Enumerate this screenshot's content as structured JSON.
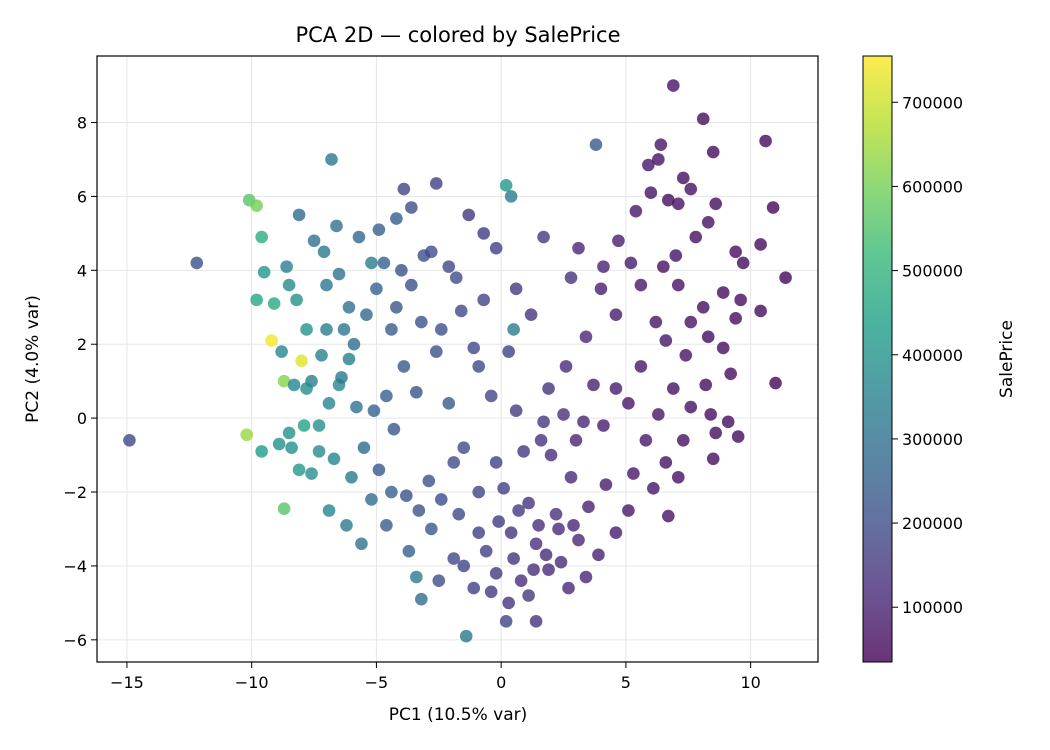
{
  "chart_data": {
    "type": "scatter",
    "title": "PCA 2D — colored by SalePrice",
    "xlabel": "PC1 (10.5% var)",
    "ylabel": "PC2 (4.0% var)",
    "xlim": [
      -16.2,
      12.7
    ],
    "ylim": [
      -6.6,
      9.8
    ],
    "xticks": [
      -15,
      -10,
      -5,
      0,
      5,
      10
    ],
    "yticks": [
      -6,
      -4,
      -2,
      0,
      2,
      4,
      6,
      8
    ],
    "xtick_labels": [
      "−15",
      "−10",
      "−5",
      "0",
      "5",
      "10"
    ],
    "ytick_labels": [
      "−6",
      "−4",
      "−2",
      "0",
      "2",
      "4",
      "6",
      "8"
    ],
    "grid": true,
    "colormap": "viridis",
    "marker_alpha": 0.8,
    "colorbar": {
      "label": "SalePrice",
      "range": [
        34900,
        755000
      ],
      "ticks": [
        100000,
        200000,
        300000,
        400000,
        500000,
        600000,
        700000
      ],
      "tick_labels": [
        "100000",
        "200000",
        "300000",
        "400000",
        "500000",
        "600000",
        "700000"
      ]
    },
    "colors": {
      "viridis": [
        "#440154",
        "#482878",
        "#3e4a89",
        "#31688e",
        "#26828e",
        "#1f9e89",
        "#35b779",
        "#6ece58",
        "#b5de2b",
        "#fde725"
      ]
    },
    "points": [
      [
        -14.9,
        -0.6,
        190000
      ],
      [
        -12.2,
        4.2,
        210000
      ],
      [
        -9.2,
        2.1,
        745000
      ],
      [
        -10.1,
        5.9,
        560000
      ],
      [
        -9.8,
        5.75,
        600000
      ],
      [
        -9.6,
        4.9,
        480000
      ],
      [
        -9.5,
        3.95,
        420000
      ],
      [
        -9.8,
        3.2,
        460000
      ],
      [
        -9.1,
        3.1,
        470000
      ],
      [
        -8.0,
        1.55,
        720000
      ],
      [
        -8.7,
        1.0,
        620000
      ],
      [
        -10.2,
        -0.45,
        640000
      ],
      [
        -8.7,
        -2.45,
        560000
      ],
      [
        -9.6,
        -0.9,
        430000
      ],
      [
        -8.9,
        -0.7,
        400000
      ],
      [
        -8.4,
        -0.8,
        390000
      ],
      [
        -7.9,
        -0.2,
        450000
      ],
      [
        -7.3,
        -0.9,
        380000
      ],
      [
        -6.9,
        -2.5,
        360000
      ],
      [
        -6.2,
        -2.9,
        330000
      ],
      [
        -5.6,
        -3.4,
        300000
      ],
      [
        -6.8,
        7.0,
        320000
      ],
      [
        -8.1,
        5.5,
        280000
      ],
      [
        -7.5,
        4.8,
        300000
      ],
      [
        -8.6,
        4.1,
        350000
      ],
      [
        -8.5,
        3.6,
        380000
      ],
      [
        -8.2,
        3.2,
        400000
      ],
      [
        -7.8,
        2.4,
        410000
      ],
      [
        -8.8,
        1.8,
        370000
      ],
      [
        -8.3,
        0.9,
        360000
      ],
      [
        -7.6,
        1.0,
        340000
      ],
      [
        -6.5,
        0.9,
        370000
      ],
      [
        -6.1,
        1.6,
        350000
      ],
      [
        -6.5,
        3.9,
        300000
      ],
      [
        -5.7,
        4.9,
        270000
      ],
      [
        -5.2,
        4.2,
        340000
      ],
      [
        -4.7,
        4.2,
        260000
      ],
      [
        -3.6,
        5.7,
        200000
      ],
      [
        -3.9,
        6.2,
        180000
      ],
      [
        -2.6,
        6.35,
        170000
      ],
      [
        -1.3,
        5.5,
        150000
      ],
      [
        -0.7,
        5.0,
        160000
      ],
      [
        0.2,
        6.3,
        420000
      ],
      [
        0.4,
        6.0,
        330000
      ],
      [
        -1.8,
        3.8,
        200000
      ],
      [
        -4.2,
        3.0,
        230000
      ],
      [
        -3.2,
        2.6,
        220000
      ],
      [
        -2.4,
        2.4,
        210000
      ],
      [
        -1.1,
        1.9,
        190000
      ],
      [
        0.5,
        2.4,
        340000
      ],
      [
        0.3,
        1.8,
        170000
      ],
      [
        1.2,
        2.8,
        140000
      ],
      [
        -5.1,
        0.2,
        260000
      ],
      [
        -4.3,
        -0.3,
        230000
      ],
      [
        -3.4,
        0.7,
        220000
      ],
      [
        -2.1,
        0.4,
        240000
      ],
      [
        -1.5,
        -0.8,
        200000
      ],
      [
        -0.4,
        0.6,
        180000
      ],
      [
        0.6,
        0.2,
        160000
      ],
      [
        1.7,
        -0.1,
        150000
      ],
      [
        -4.9,
        -1.4,
        230000
      ],
      [
        -3.8,
        -2.1,
        220000
      ],
      [
        -2.9,
        -1.7,
        210000
      ],
      [
        -1.9,
        -1.2,
        200000
      ],
      [
        -0.9,
        -2.0,
        180000
      ],
      [
        0.1,
        -1.9,
        170000
      ],
      [
        1.1,
        -2.3,
        140000
      ],
      [
        2.2,
        -2.6,
        130000
      ],
      [
        -4.6,
        -2.9,
        240000
      ],
      [
        -3.7,
        -3.6,
        260000
      ],
      [
        -2.8,
        -3.0,
        230000
      ],
      [
        -1.9,
        -3.8,
        190000
      ],
      [
        -0.6,
        -3.6,
        170000
      ],
      [
        0.4,
        -3.1,
        140000
      ],
      [
        1.4,
        -3.4,
        130000
      ],
      [
        2.4,
        -3.9,
        120000
      ],
      [
        -3.4,
        -4.3,
        330000
      ],
      [
        -3.2,
        -4.9,
        290000
      ],
      [
        -2.5,
        -4.4,
        200000
      ],
      [
        -1.5,
        -4.0,
        180000
      ],
      [
        -0.4,
        -4.7,
        160000
      ],
      [
        0.3,
        -5.0,
        140000
      ],
      [
        0.8,
        -4.4,
        130000
      ],
      [
        1.9,
        -4.1,
        120000
      ],
      [
        -1.4,
        -5.9,
        320000
      ],
      [
        0.2,
        -5.5,
        180000
      ],
      [
        1.4,
        -5.5,
        140000
      ],
      [
        1.1,
        -4.8,
        150000
      ],
      [
        3.1,
        -3.3,
        110000
      ],
      [
        3.5,
        -2.4,
        100000
      ],
      [
        4.2,
        -1.8,
        90000
      ],
      [
        2.8,
        -1.6,
        120000
      ],
      [
        2.0,
        -1.0,
        130000
      ],
      [
        3.0,
        -0.6,
        110000
      ],
      [
        4.1,
        -0.2,
        90000
      ],
      [
        5.1,
        0.4,
        80000
      ],
      [
        3.7,
        0.9,
        100000
      ],
      [
        2.6,
        1.4,
        120000
      ],
      [
        3.4,
        2.2,
        110000
      ],
      [
        4.6,
        2.8,
        90000
      ],
      [
        5.6,
        3.6,
        80000
      ],
      [
        6.5,
        4.1,
        70000
      ],
      [
        4.1,
        4.1,
        100000
      ],
      [
        3.1,
        4.6,
        110000
      ],
      [
        4.7,
        4.8,
        90000
      ],
      [
        5.4,
        5.6,
        80000
      ],
      [
        6.0,
        6.1,
        70000
      ],
      [
        6.7,
        5.9,
        60000
      ],
      [
        7.3,
        6.5,
        60000
      ],
      [
        6.3,
        7.0,
        70000
      ],
      [
        5.2,
        4.2,
        85000
      ],
      [
        4.0,
        3.5,
        95000
      ],
      [
        3.8,
        7.4,
        230000
      ],
      [
        5.9,
        6.85,
        80000
      ],
      [
        6.4,
        7.4,
        75000
      ],
      [
        6.9,
        9.0,
        70000
      ],
      [
        8.1,
        8.1,
        60000
      ],
      [
        8.5,
        7.2,
        60000
      ],
      [
        7.6,
        6.2,
        65000
      ],
      [
        7.1,
        5.8,
        70000
      ],
      [
        8.6,
        5.8,
        60000
      ],
      [
        8.3,
        5.3,
        65000
      ],
      [
        9.4,
        4.5,
        60000
      ],
      [
        9.7,
        4.2,
        55000
      ],
      [
        10.4,
        4.7,
        55000
      ],
      [
        10.9,
        5.7,
        50000
      ],
      [
        10.6,
        7.5,
        55000
      ],
      [
        11.4,
        3.8,
        50000
      ],
      [
        10.4,
        2.9,
        55000
      ],
      [
        9.6,
        3.2,
        60000
      ],
      [
        9.4,
        2.7,
        60000
      ],
      [
        8.9,
        3.4,
        60000
      ],
      [
        8.1,
        3.0,
        65000
      ],
      [
        7.6,
        2.6,
        70000
      ],
      [
        7.1,
        3.6,
        70000
      ],
      [
        6.6,
        2.1,
        75000
      ],
      [
        7.4,
        1.7,
        70000
      ],
      [
        8.3,
        2.2,
        60000
      ],
      [
        8.9,
        1.9,
        60000
      ],
      [
        9.2,
        1.2,
        60000
      ],
      [
        8.2,
        0.9,
        60000
      ],
      [
        7.6,
        0.3,
        65000
      ],
      [
        6.9,
        0.8,
        70000
      ],
      [
        6.3,
        0.1,
        75000
      ],
      [
        5.8,
        -0.6,
        80000
      ],
      [
        6.6,
        -1.2,
        70000
      ],
      [
        7.3,
        -0.6,
        65000
      ],
      [
        8.4,
        0.1,
        60000
      ],
      [
        8.6,
        -0.4,
        60000
      ],
      [
        9.1,
        -0.1,
        60000
      ],
      [
        9.5,
        -0.5,
        55000
      ],
      [
        11.0,
        0.95,
        50000
      ],
      [
        8.5,
        -1.1,
        60000
      ],
      [
        7.1,
        -1.6,
        65000
      ],
      [
        6.1,
        -1.9,
        75000
      ],
      [
        5.3,
        -1.5,
        80000
      ],
      [
        5.1,
        -2.5,
        80000
      ],
      [
        4.6,
        -3.1,
        90000
      ],
      [
        3.9,
        -3.7,
        100000
      ],
      [
        6.7,
        -2.65,
        70000
      ],
      [
        0.6,
        3.5,
        150000
      ],
      [
        -0.2,
        4.6,
        170000
      ],
      [
        1.7,
        4.9,
        160000
      ],
      [
        2.8,
        3.8,
        140000
      ],
      [
        1.9,
        0.8,
        140000
      ],
      [
        0.9,
        -0.9,
        150000
      ],
      [
        -0.2,
        -1.2,
        170000
      ],
      [
        -0.9,
        1.4,
        190000
      ],
      [
        -2.8,
        4.5,
        200000
      ],
      [
        -3.6,
        3.6,
        210000
      ],
      [
        -4.4,
        2.4,
        240000
      ],
      [
        -5.4,
        2.8,
        270000
      ],
      [
        -5.9,
        2.0,
        290000
      ],
      [
        -6.4,
        1.1,
        320000
      ],
      [
        -6.9,
        0.4,
        360000
      ],
      [
        -7.3,
        -0.2,
        390000
      ],
      [
        -6.7,
        -1.1,
        360000
      ],
      [
        -6.0,
        -1.6,
        330000
      ],
      [
        -5.2,
        -2.2,
        290000
      ],
      [
        -4.4,
        -2.0,
        260000
      ],
      [
        -5.5,
        -0.8,
        280000
      ],
      [
        -4.6,
        0.6,
        250000
      ],
      [
        -3.9,
        1.4,
        230000
      ],
      [
        -2.6,
        1.8,
        210000
      ],
      [
        -1.6,
        2.9,
        190000
      ],
      [
        -0.7,
        3.2,
        180000
      ],
      [
        -2.1,
        4.1,
        190000
      ],
      [
        -3.1,
        4.4,
        200000
      ],
      [
        -4.0,
        4.0,
        220000
      ],
      [
        -5.0,
        3.5,
        260000
      ],
      [
        -6.1,
        3.0,
        300000
      ],
      [
        -7.0,
        3.6,
        320000
      ],
      [
        -7.1,
        4.5,
        330000
      ],
      [
        -6.6,
        5.2,
        300000
      ],
      [
        -4.9,
        5.1,
        250000
      ],
      [
        -4.2,
        5.4,
        240000
      ],
      [
        1.6,
        -0.6,
        140000
      ],
      [
        2.5,
        0.1,
        130000
      ],
      [
        3.3,
        -0.1,
        110000
      ],
      [
        4.6,
        0.8,
        90000
      ],
      [
        5.6,
        1.4,
        80000
      ],
      [
        6.2,
        2.6,
        75000
      ],
      [
        7.0,
        4.4,
        70000
      ],
      [
        7.8,
        4.9,
        65000
      ],
      [
        2.3,
        -3.0,
        120000
      ],
      [
        1.5,
        -2.9,
        130000
      ],
      [
        0.7,
        -2.5,
        150000
      ],
      [
        -0.1,
        -2.8,
        160000
      ],
      [
        -0.9,
        -3.1,
        170000
      ],
      [
        -1.7,
        -2.6,
        190000
      ],
      [
        -2.4,
        -2.2,
        200000
      ],
      [
        -3.3,
        -2.5,
        220000
      ],
      [
        1.8,
        -3.7,
        120000
      ],
      [
        2.9,
        -2.9,
        110000
      ],
      [
        3.4,
        -4.3,
        110000
      ],
      [
        2.7,
        -4.6,
        115000
      ],
      [
        1.3,
        -4.1,
        130000
      ],
      [
        0.5,
        -3.8,
        140000
      ],
      [
        -0.2,
        -4.2,
        160000
      ],
      [
        -1.1,
        -4.6,
        170000
      ],
      [
        -8.5,
        -0.4,
        400000
      ],
      [
        -8.1,
        -1.4,
        420000
      ],
      [
        -7.6,
        -1.5,
        390000
      ],
      [
        -7.8,
        0.8,
        380000
      ],
      [
        -7.2,
        1.7,
        350000
      ],
      [
        -7.0,
        2.4,
        340000
      ],
      [
        -6.3,
        2.4,
        320000
      ],
      [
        -5.8,
        0.3,
        300000
      ]
    ]
  }
}
